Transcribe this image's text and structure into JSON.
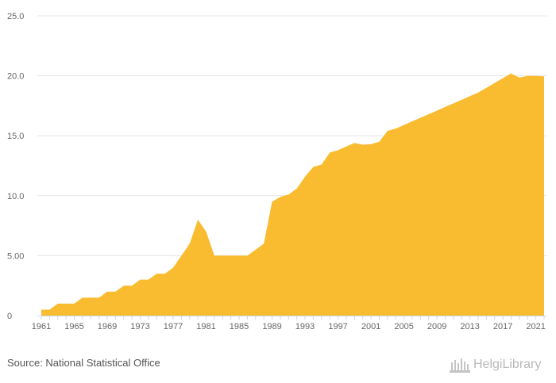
{
  "chart_data": {
    "type": "area",
    "title": "",
    "xlabel": "",
    "ylabel": "",
    "x": [
      1961,
      1962,
      1963,
      1964,
      1965,
      1966,
      1967,
      1968,
      1969,
      1970,
      1971,
      1972,
      1973,
      1974,
      1975,
      1976,
      1977,
      1978,
      1979,
      1980,
      1981,
      1982,
      1983,
      1984,
      1985,
      1986,
      1987,
      1988,
      1989,
      1990,
      1991,
      1992,
      1993,
      1994,
      1995,
      1996,
      1997,
      1998,
      1999,
      2000,
      2001,
      2002,
      2003,
      2004,
      2005,
      2006,
      2007,
      2008,
      2009,
      2010,
      2011,
      2012,
      2013,
      2014,
      2015,
      2016,
      2017,
      2018,
      2019,
      2020,
      2021,
      2022
    ],
    "series": [
      {
        "values": [
          0.5,
          0.5,
          1.0,
          1.0,
          1.0,
          1.5,
          1.5,
          1.5,
          2.0,
          2.0,
          2.5,
          2.5,
          3.0,
          3.0,
          3.5,
          3.5,
          4.0,
          5.0,
          6.0,
          8.0,
          7.0,
          5.0,
          5.0,
          5.0,
          5.0,
          5.0,
          5.5,
          6.0,
          9.5,
          9.9,
          10.1,
          10.6,
          11.6,
          12.4,
          12.6,
          13.6,
          13.8,
          14.1,
          14.4,
          14.25,
          14.3,
          14.5,
          15.4,
          15.6,
          15.9,
          16.2,
          16.5,
          16.8,
          17.1,
          17.4,
          17.7,
          18.0,
          18.3,
          18.6,
          19.0,
          19.4,
          19.8,
          20.2,
          19.85,
          20.0,
          20.0,
          19.95
        ]
      }
    ],
    "xticks": [
      1961,
      1965,
      1969,
      1973,
      1977,
      1981,
      1985,
      1989,
      1993,
      1997,
      2001,
      2005,
      2009,
      2013,
      2017,
      2021
    ],
    "yticks": [
      "0",
      "5.00",
      "10.0",
      "15.0",
      "20.0",
      "25.0"
    ],
    "ytick_values": [
      0,
      5,
      10,
      15,
      20,
      25
    ],
    "xlim": [
      1961,
      2022
    ],
    "ylim": [
      0,
      25
    ],
    "grid": true,
    "colors": {
      "area": "#F9BC30",
      "grid": "#e6e6e6",
      "axis": "#ccd6eb"
    }
  },
  "footer": {
    "source": "Source: National Statistical Office",
    "logo_text": "HelgiLibrary"
  }
}
